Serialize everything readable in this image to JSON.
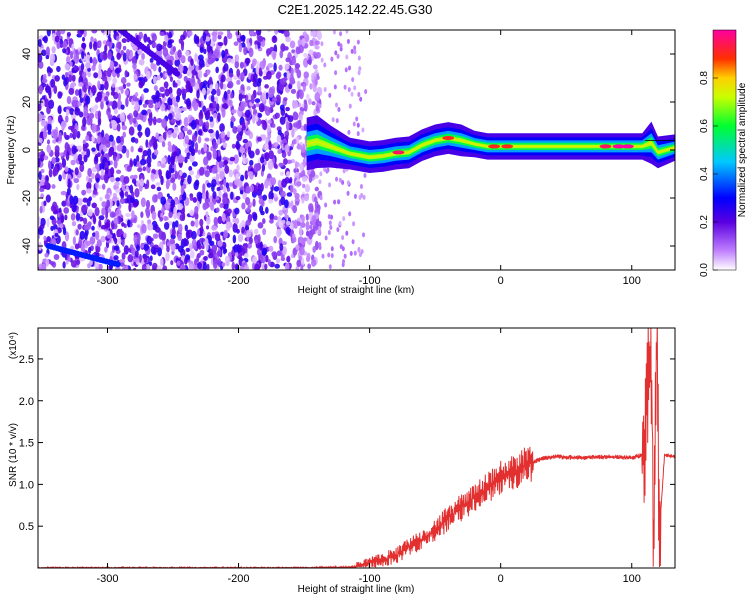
{
  "title": "C2E1.2025.142.22.45.G30",
  "chart_data": [
    {
      "type": "heatmap",
      "xlabel": "Height of straight line (km)",
      "ylabel": "Frequency (Hz)",
      "xlim": [
        -353,
        133
      ],
      "ylim": [
        -50,
        50
      ],
      "x_ticks": [
        -300,
        -200,
        -100,
        0,
        100
      ],
      "y_ticks": [
        -40,
        -20,
        0,
        20,
        40
      ],
      "colorbar": {
        "label": "Normalized spectral amplitude",
        "range": [
          0.0,
          1.0
        ],
        "ticks": [
          "0.0",
          "0.2",
          "0.4",
          "0.6",
          "0.8"
        ],
        "colormap": "rainbow: white, violet, blue, cyan, green, yellow, red, magenta"
      },
      "noise_region": {
        "x_from": -353,
        "x_to": -138,
        "description_values": {
          "freq_min": -50,
          "freq_max": 50
        }
      },
      "spectral_track": [
        {
          "x": -148,
          "y": 2.5,
          "w": 5
        },
        {
          "x": -140,
          "y": 3.5,
          "w": 5
        },
        {
          "x": -130,
          "y": 1.5,
          "w": 4
        },
        {
          "x": -115,
          "y": -1.5,
          "w": 3
        },
        {
          "x": -100,
          "y": -3,
          "w": 3
        },
        {
          "x": -90,
          "y": -2.5,
          "w": 3
        },
        {
          "x": -80,
          "y": -1.5,
          "w": 3
        },
        {
          "x": -70,
          "y": -1,
          "w": 3
        },
        {
          "x": -60,
          "y": 2,
          "w": 3
        },
        {
          "x": -50,
          "y": 4,
          "w": 3
        },
        {
          "x": -40,
          "y": 5,
          "w": 3
        },
        {
          "x": -30,
          "y": 4,
          "w": 3
        },
        {
          "x": -20,
          "y": 2.5,
          "w": 2.5
        },
        {
          "x": -10,
          "y": 1.5,
          "w": 2.5
        },
        {
          "x": 0,
          "y": 1.5,
          "w": 2.5
        },
        {
          "x": 20,
          "y": 1.5,
          "w": 2.5
        },
        {
          "x": 40,
          "y": 1.5,
          "w": 2.5
        },
        {
          "x": 60,
          "y": 1.5,
          "w": 2.5
        },
        {
          "x": 80,
          "y": 1.5,
          "w": 2.5
        },
        {
          "x": 100,
          "y": 1.5,
          "w": 2.5
        },
        {
          "x": 108,
          "y": 1.5,
          "w": 2.5
        },
        {
          "x": 115,
          "y": 3,
          "w": 4
        },
        {
          "x": 120,
          "y": -1,
          "w": 3
        },
        {
          "x": 133,
          "y": 1,
          "w": 2.5
        }
      ],
      "hot_spots": [
        {
          "x": -78,
          "y": -1,
          "a": 0.95
        },
        {
          "x": -40,
          "y": 5,
          "a": 0.9
        },
        {
          "x": -5,
          "y": 1.5,
          "a": 0.9
        },
        {
          "x": 5,
          "y": 1.5,
          "a": 0.9
        },
        {
          "x": 80,
          "y": 1.5,
          "a": 0.95
        },
        {
          "x": 90,
          "y": 1.5,
          "a": 1.0
        },
        {
          "x": 97,
          "y": 1.5,
          "a": 1.0
        }
      ],
      "noise_streaks": [
        {
          "x1": -290,
          "y1": 50,
          "x2": -245,
          "y2": 31
        },
        {
          "x1": -345,
          "y1": -40,
          "x2": -290,
          "y2": -48
        }
      ]
    },
    {
      "type": "line",
      "xlabel": "Height of straight line (km)",
      "ylabel": "SNR (10 * v/v)",
      "y_multiplier": "(x10⁴)",
      "xlim": [
        -353,
        133
      ],
      "ylim": [
        0,
        2.87
      ],
      "x_ticks": [
        -300,
        -200,
        -100,
        0,
        100
      ],
      "y_ticks": [
        "0.5",
        "1.0",
        "1.5",
        "2.0",
        "2.5"
      ],
      "color": "#e23030",
      "series": [
        {
          "x": [
            -353,
            -300,
            -200,
            -150,
            -110,
            -100,
            -90,
            -80,
            -70,
            -60,
            -50,
            -40,
            -30,
            -20,
            -10,
            0,
            10,
            20,
            30,
            40,
            60,
            80,
            100,
            108,
            112,
            115,
            117,
            119,
            121,
            125,
            133
          ],
          "values": [
            0.0,
            0.0,
            0.0,
            0.0,
            0.01,
            0.06,
            0.1,
            0.15,
            0.25,
            0.35,
            0.45,
            0.6,
            0.72,
            0.85,
            0.95,
            1.08,
            1.15,
            1.25,
            1.3,
            1.33,
            1.32,
            1.33,
            1.32,
            1.35,
            2.0,
            2.5,
            0.1,
            2.75,
            0.4,
            1.35,
            1.33
          ]
        }
      ]
    }
  ]
}
